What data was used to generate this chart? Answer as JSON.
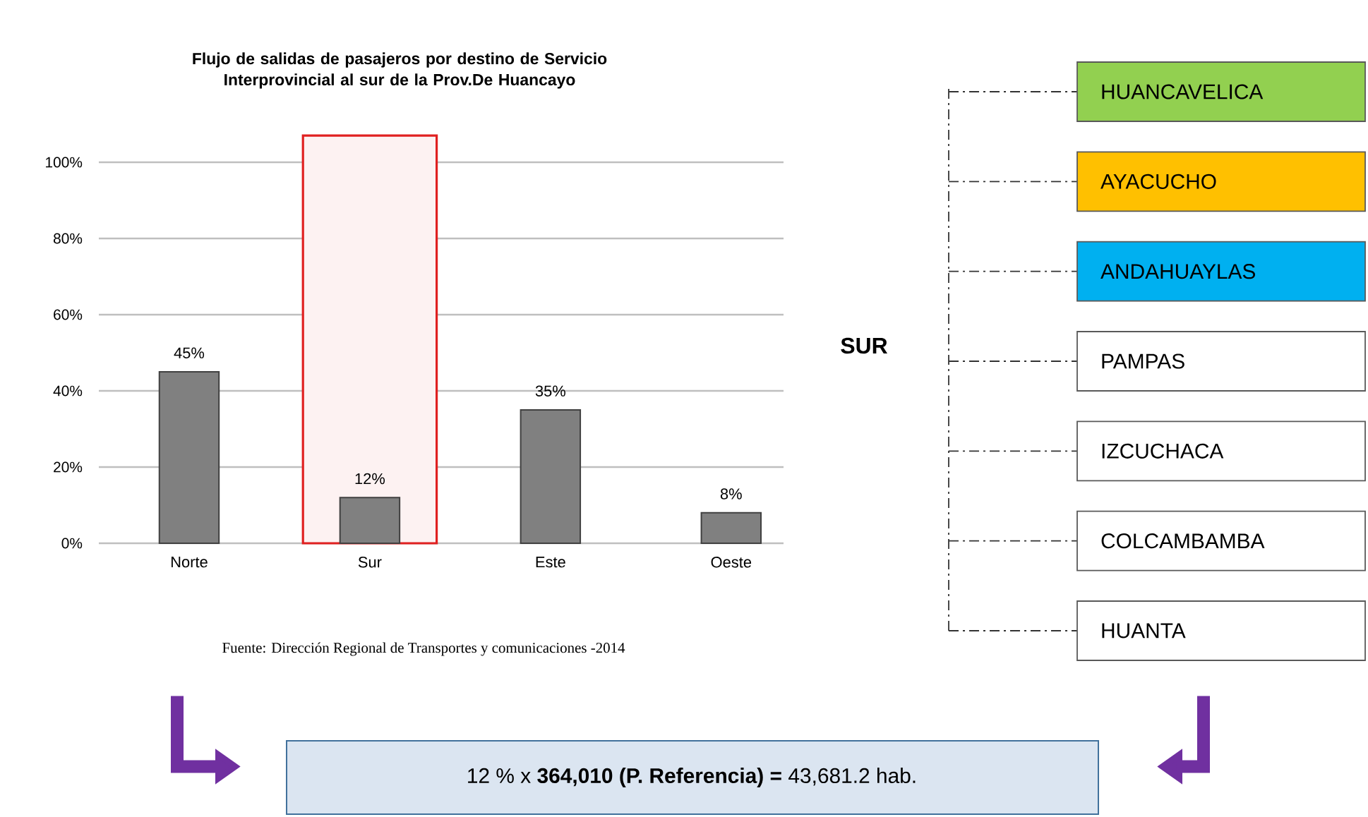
{
  "chart_data": [
    {
      "type": "bar",
      "title": "Flujo de salidas de pasajeros por destino de Servicio Interprovincial  al sur de la Prov.De Huancayo",
      "categories": [
        "Norte",
        "Sur",
        "Este",
        "Oeste"
      ],
      "values": [
        45,
        12,
        35,
        8
      ],
      "value_labels": [
        "45%",
        "12%",
        "35%",
        "8%"
      ],
      "color": "#808080",
      "ylim": [
        0,
        100
      ],
      "yticks": [
        {
          "value": 0,
          "label": "0%"
        },
        {
          "value": 20,
          "label": "20%"
        },
        {
          "value": 40,
          "label": "40%"
        },
        {
          "value": 60,
          "label": "60%"
        },
        {
          "value": 80,
          "label": "80%"
        },
        {
          "value": 100,
          "label": "100%"
        }
      ],
      "grid": "y",
      "bands": [
        {
          "axis": "x",
          "from": "Sur",
          "to": "Sur",
          "color": "#e02020"
        }
      ],
      "annotations": [
        "Fuente: Dirección Regional de Transportes y comunicaciones -2014"
      ]
    },
    {
      "type": "other",
      "title": "SUR",
      "categories": [
        "HUANCAVELICA",
        "AYACUCHO",
        "ANDAHUAYLAS",
        "PAMPAS",
        "IZCUCHACA",
        "COLCAMBAMBA",
        "HUANTA"
      ],
      "colors": [
        "#92d050",
        "#ffc000",
        "#00b0f0",
        "#ffffff",
        "#ffffff",
        "#ffffff",
        "#ffffff"
      ],
      "annotations": [
        "12 % x **364,010 (P. Referencia) =** 43,681.2 hab."
      ]
    }
  ]
}
